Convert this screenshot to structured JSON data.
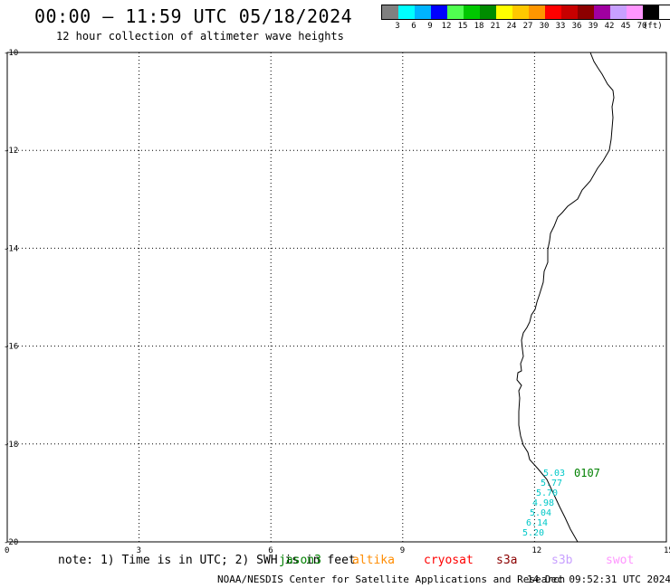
{
  "header": {
    "title": "00:00 – 11:59 UTC 05/18/2024",
    "subtitle": "12 hour collection of altimeter wave heights"
  },
  "legend": {
    "unit": "(ft)",
    "colors": [
      "#808080",
      "#00ffff",
      "#00b4ff",
      "#0000ff",
      "#50ff50",
      "#00c800",
      "#008c00",
      "#ffff00",
      "#ffc800",
      "#ff9600",
      "#ff0000",
      "#c80000",
      "#8c0000",
      "#a000a0",
      "#c8a0ff",
      "#ff96ff",
      "#000000"
    ],
    "ticks": [
      "3",
      "6",
      "9",
      "12",
      "15",
      "18",
      "21",
      "24",
      "27",
      "30",
      "33",
      "36",
      "39",
      "42",
      "45",
      "70"
    ]
  },
  "map": {
    "y_labels": [
      "-10",
      "-12",
      "-14",
      "-16",
      "-18",
      "-20"
    ],
    "x_labels": [
      "0",
      "3",
      "6",
      "9",
      "12",
      "15"
    ],
    "track_label": "0107",
    "track_color": "#008000",
    "wave_color": "#00c8c8",
    "wave_values": [
      "5.03",
      "5.77",
      "5.70",
      "4.98",
      "5.04",
      "6.14",
      "5.20"
    ]
  },
  "footer": {
    "note": "note: 1) Time is in UTC; 2) SWH is in feet",
    "satellites": [
      {
        "name": "jason3",
        "color": "#008000"
      },
      {
        "name": "altika",
        "color": "#ff8c00"
      },
      {
        "name": "cryosat",
        "color": "#ff0000"
      },
      {
        "name": "s3a",
        "color": "#8b0000"
      },
      {
        "name": "s3b",
        "color": "#c8a0ff"
      },
      {
        "name": "swot",
        "color": "#ff96ff"
      }
    ],
    "credit": "NOAA/NESDIS Center for Satellite Applications and Research",
    "timestamp": "14 Dec 09:52:31 UTC 2024"
  }
}
